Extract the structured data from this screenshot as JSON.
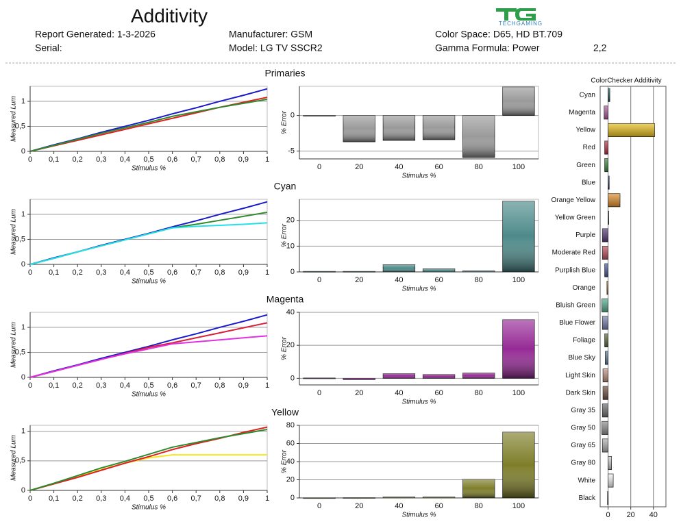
{
  "header": {
    "title": "Additivity",
    "report_generated": "Report Generated: 1-3-2026",
    "serial": "Serial:",
    "manufacturer": "Manufacturer: GSM",
    "model": "Model: LG TV SSCR2",
    "color_space": "Color Space: D65, HD BT.709",
    "gamma_formula": "Gamma Formula: Power",
    "gamma_value": "2,2",
    "logo": "TECHGAMING"
  },
  "chart_data": [
    {
      "type": "line",
      "title": "Primaries",
      "xlabel": "Stimulus %",
      "ylabel": "Measured Lum",
      "x": [
        0,
        0.1,
        0.2,
        0.3,
        0.4,
        0.5,
        0.6,
        0.7,
        0.8,
        0.9,
        1
      ],
      "xlim": [
        0,
        1
      ],
      "xticks": [
        0,
        {
          "value": 0.1,
          "label": "0,1"
        },
        {
          "value": 0.2,
          "label": "0,2"
        },
        {
          "value": 0.3,
          "label": "0,3"
        },
        {
          "value": 0.4,
          "label": "0,4"
        },
        {
          "value": 0.5,
          "label": "0,5"
        },
        {
          "value": 0.6,
          "label": "0,6"
        },
        {
          "value": 0.7,
          "label": "0,7"
        },
        {
          "value": 0.8,
          "label": "0,8"
        },
        {
          "value": 0.9,
          "label": "0,9"
        },
        1
      ],
      "ylim": [
        0,
        1.3
      ],
      "yticks": [
        0,
        {
          "value": 0.5,
          "label": "0,5"
        },
        1
      ],
      "grid": true,
      "series": [
        {
          "color": "#1a1acc",
          "values": [
            0,
            0.13,
            0.25,
            0.38,
            0.5,
            0.62,
            0.75,
            0.87,
            1.0,
            1.12,
            1.25
          ]
        },
        {
          "color": "#e02020",
          "values": [
            0,
            0.11,
            0.22,
            0.33,
            0.44,
            0.55,
            0.66,
            0.77,
            0.88,
            0.98,
            1.08
          ]
        },
        {
          "color": "#2e8a2e",
          "values": [
            0,
            0.12,
            0.24,
            0.36,
            0.47,
            0.58,
            0.7,
            0.79,
            0.88,
            0.96,
            1.04
          ]
        }
      ]
    },
    {
      "type": "bar",
      "xlabel": "Stimulus %",
      "ylabel": "% Error",
      "categories": [
        "0",
        "20",
        "40",
        "60",
        "80",
        "100"
      ],
      "values": [
        0,
        -3.7,
        -3.5,
        -3.4,
        -5.9,
        4
      ],
      "color": "#9a9a9a",
      "ylim": [
        -6.1,
        4.1
      ],
      "yticks": [
        -5,
        0
      ],
      "grid": true
    },
    {
      "type": "line",
      "title": "Cyan",
      "xlabel": "Stimulus %",
      "ylabel": "Measured Lum",
      "x": [
        0,
        0.1,
        0.2,
        0.3,
        0.4,
        0.5,
        0.6,
        0.7,
        0.8,
        0.9,
        1
      ],
      "xlim": [
        0,
        1
      ],
      "xticks": [
        0,
        {
          "value": 0.1,
          "label": "0,1"
        },
        {
          "value": 0.2,
          "label": "0,2"
        },
        {
          "value": 0.3,
          "label": "0,3"
        },
        {
          "value": 0.4,
          "label": "0,4"
        },
        {
          "value": 0.5,
          "label": "0,5"
        },
        {
          "value": 0.6,
          "label": "0,6"
        },
        {
          "value": 0.7,
          "label": "0,7"
        },
        {
          "value": 0.8,
          "label": "0,8"
        },
        {
          "value": 0.9,
          "label": "0,9"
        },
        1
      ],
      "ylim": [
        0,
        1.3
      ],
      "yticks": [
        0,
        {
          "value": 0.5,
          "label": "0,5"
        },
        1
      ],
      "grid": true,
      "series": [
        {
          "color": "#1a1acc",
          "values": [
            0,
            0.13,
            0.25,
            0.38,
            0.5,
            0.62,
            0.75,
            0.87,
            1.0,
            1.12,
            1.25
          ]
        },
        {
          "color": "#2e8a2e",
          "values": [
            0,
            0.12,
            0.25,
            0.37,
            0.49,
            0.61,
            0.73,
            0.8,
            0.88,
            0.96,
            1.04
          ]
        },
        {
          "color": "#22e0e8",
          "values": [
            0,
            0.12,
            0.25,
            0.37,
            0.49,
            0.61,
            0.73,
            0.76,
            0.78,
            0.8,
            0.83
          ]
        }
      ]
    },
    {
      "type": "bar",
      "xlabel": "Stimulus %",
      "ylabel": "% Error",
      "categories": [
        "0",
        "20",
        "40",
        "60",
        "80",
        "100"
      ],
      "values": [
        0.2,
        0.2,
        2.8,
        1.2,
        0.4,
        27.5
      ],
      "color": "#4e8a8a",
      "ylim": [
        0,
        28.2
      ],
      "yticks": [
        0,
        10,
        20
      ],
      "grid": true
    },
    {
      "type": "line",
      "title": "Magenta",
      "xlabel": "Stimulus %",
      "ylabel": "Measured Lum",
      "x": [
        0,
        0.1,
        0.2,
        0.3,
        0.4,
        0.5,
        0.6,
        0.7,
        0.8,
        0.9,
        1
      ],
      "xlim": [
        0,
        1
      ],
      "xticks": [
        0,
        {
          "value": 0.1,
          "label": "0,1"
        },
        {
          "value": 0.2,
          "label": "0,2"
        },
        {
          "value": 0.3,
          "label": "0,3"
        },
        {
          "value": 0.4,
          "label": "0,4"
        },
        {
          "value": 0.5,
          "label": "0,5"
        },
        {
          "value": 0.6,
          "label": "0,6"
        },
        {
          "value": 0.7,
          "label": "0,7"
        },
        {
          "value": 0.8,
          "label": "0,8"
        },
        {
          "value": 0.9,
          "label": "0,9"
        },
        1
      ],
      "ylim": [
        0,
        1.3
      ],
      "yticks": [
        0,
        {
          "value": 0.5,
          "label": "0,5"
        },
        1
      ],
      "grid": true,
      "series": [
        {
          "color": "#1a1acc",
          "values": [
            0,
            0.13,
            0.25,
            0.38,
            0.5,
            0.62,
            0.75,
            0.87,
            1.0,
            1.12,
            1.25
          ]
        },
        {
          "color": "#d8203a",
          "values": [
            0,
            0.12,
            0.24,
            0.36,
            0.48,
            0.6,
            0.69,
            0.79,
            0.89,
            0.99,
            1.09
          ]
        },
        {
          "color": "#e030e0",
          "values": [
            0,
            0.12,
            0.24,
            0.36,
            0.47,
            0.57,
            0.67,
            0.71,
            0.75,
            0.79,
            0.83
          ]
        }
      ]
    },
    {
      "type": "bar",
      "xlabel": "Stimulus %",
      "ylabel": "% Error",
      "categories": [
        "0",
        "20",
        "40",
        "60",
        "80",
        "100"
      ],
      "values": [
        0.2,
        -0.8,
        2.8,
        2.3,
        3.2,
        35.5
      ],
      "color": "#962a96",
      "ylim": [
        -4,
        40
      ],
      "yticks": [
        0,
        20,
        40
      ],
      "grid": true
    },
    {
      "type": "line",
      "title": "Yellow",
      "xlabel": "Stimulus %",
      "ylabel": "Measured Lum",
      "x": [
        0,
        0.1,
        0.2,
        0.3,
        0.4,
        0.5,
        0.6,
        0.7,
        0.8,
        0.9,
        1
      ],
      "xlim": [
        0,
        1
      ],
      "xticks": [
        0,
        {
          "value": 0.1,
          "label": "0,1"
        },
        {
          "value": 0.2,
          "label": "0,2"
        },
        {
          "value": 0.3,
          "label": "0,3"
        },
        {
          "value": 0.4,
          "label": "0,4"
        },
        {
          "value": 0.5,
          "label": "0,5"
        },
        {
          "value": 0.6,
          "label": "0,6"
        },
        {
          "value": 0.7,
          "label": "0,7"
        },
        {
          "value": 0.8,
          "label": "0,8"
        },
        {
          "value": 0.9,
          "label": "0,9"
        },
        1
      ],
      "ylim": [
        0,
        1.1
      ],
      "yticks": [
        0,
        {
          "value": 0.5,
          "label": "0,5"
        },
        1
      ],
      "grid": true,
      "series": [
        {
          "color": "#f2e620",
          "values": [
            0,
            0.11,
            0.23,
            0.35,
            0.46,
            0.55,
            0.6,
            0.6,
            0.6,
            0.6,
            0.6
          ]
        },
        {
          "color": "#e02020",
          "values": [
            0,
            0.11,
            0.22,
            0.34,
            0.46,
            0.57,
            0.69,
            0.79,
            0.88,
            0.98,
            1.07
          ]
        },
        {
          "color": "#2e8a2e",
          "values": [
            0,
            0.12,
            0.25,
            0.38,
            0.49,
            0.61,
            0.73,
            0.81,
            0.89,
            0.96,
            1.03
          ]
        }
      ]
    },
    {
      "type": "bar",
      "xlabel": "Stimulus %",
      "ylabel": "% Error",
      "categories": [
        "0",
        "20",
        "40",
        "60",
        "80",
        "100"
      ],
      "values": [
        0.2,
        0.3,
        1,
        1,
        20.5,
        72.5
      ],
      "color": "#7e7e2a",
      "ylim": [
        0,
        80
      ],
      "yticks": [
        0,
        20,
        40,
        60,
        80
      ],
      "grid": true
    },
    {
      "type": "hbar",
      "title": "ColorChecker Additivity",
      "categories": [
        "Cyan",
        "Magenta",
        "Yellow",
        "Red",
        "Green",
        "Blue",
        "Orange Yellow",
        "Yellow Green",
        "Purple",
        "Moderate Red",
        "Purplish Blue",
        "Orange",
        "Bluish Green",
        "Blue Flower",
        "Foliage",
        "Blue Sky",
        "Light Skin",
        "Dark Skin",
        "Gray 35",
        "Gray 50",
        "Gray 65",
        "Gray 80",
        "White",
        "Black"
      ],
      "values": [
        1.5,
        -3.5,
        41,
        -3,
        -3,
        1,
        10.5,
        0.5,
        -5,
        -5,
        -3,
        -1,
        -5.5,
        -5,
        -3,
        -2.5,
        -4.5,
        -4.5,
        -5,
        -5.5,
        -5,
        3,
        4.5,
        -0.5
      ],
      "colors": [
        "#1a5a6a",
        "#b05aa0",
        "#e8c020",
        "#c03040",
        "#3a8a3a",
        "#2a3a8a",
        "#e09030",
        "#7a9a3a",
        "#5a3a7a",
        "#c05060",
        "#4a5a9a",
        "#d08030",
        "#50b090",
        "#7a80b0",
        "#5a6a3a",
        "#6080a0",
        "#c09080",
        "#705040",
        "#707070",
        "#909090",
        "#b0b0b0",
        "#d0d0d0",
        "#f4f4f4",
        "#303030"
      ],
      "xlim": [
        -7,
        51
      ],
      "xticks": [
        0,
        20,
        40
      ],
      "grid": true
    }
  ]
}
